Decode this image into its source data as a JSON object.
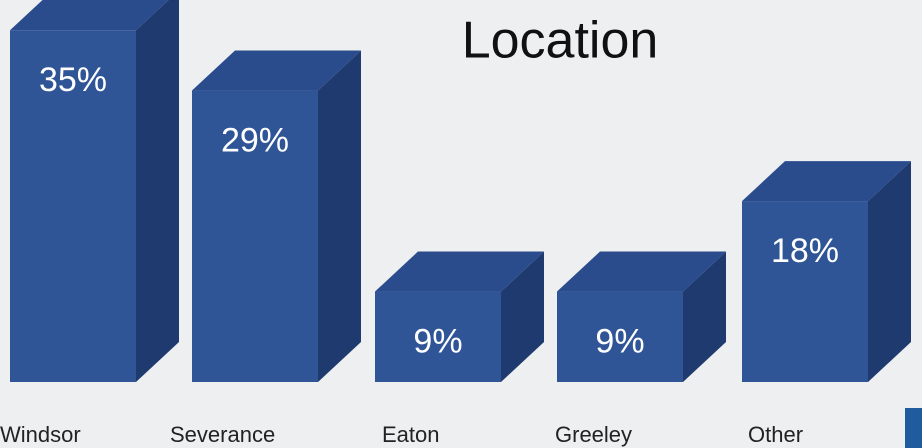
{
  "chart_data": {
    "type": "bar3d",
    "title": "Location",
    "categories": [
      "Windsor",
      "Severance",
      "Eaton",
      "Greeley",
      "Other"
    ],
    "values": [
      35,
      29,
      9,
      9,
      18
    ],
    "value_labels": [
      "35%",
      "29%",
      "9%",
      "9%",
      "18%"
    ],
    "colors": {
      "front": "#2f5597",
      "top": "#2a4b8c",
      "side": "#1f3a6e"
    }
  }
}
